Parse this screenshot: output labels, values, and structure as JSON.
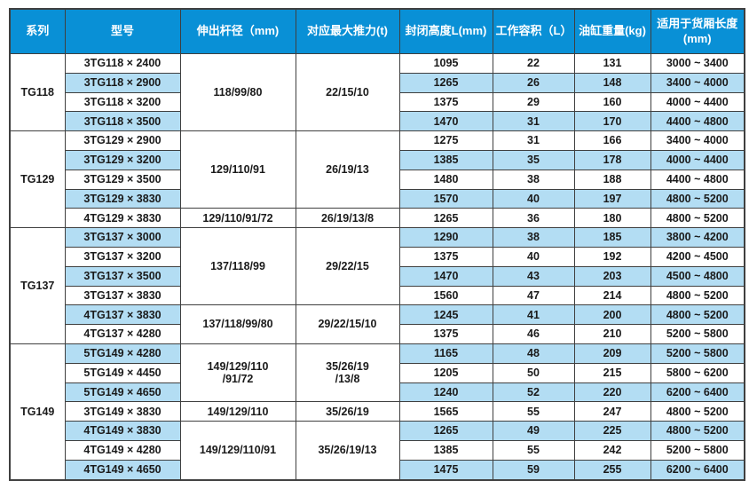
{
  "colors": {
    "header_bg": "#0990d6",
    "header_text": "#ffffff",
    "row_bg": "#ffffff",
    "row_alt_bg": "#b3ddf3",
    "border": "#3f3f3f",
    "body_text": "#1a1a1a"
  },
  "table": {
    "headers": [
      "系列",
      "型号",
      "伸出杆径（mm)",
      "对应最大推力(t)",
      "封闭高度L(mm)",
      "工作容积（L）",
      "油缸重量(kg)",
      "适用于货厢长度(mm)"
    ],
    "rows": [
      {
        "series": {
          "text": "TG118",
          "span": 4
        },
        "model": "3TG118 × 2400",
        "rod": {
          "text": "118/99/80",
          "span": 4
        },
        "thrust": {
          "text": "22/15/10",
          "span": 4
        },
        "height": "1095",
        "volume": "22",
        "weight": "131",
        "range": "3000 ~ 3400"
      },
      {
        "model": "3TG118 × 2900",
        "height": "1265",
        "volume": "26",
        "weight": "148",
        "range": "3400 ~ 4000"
      },
      {
        "model": "3TG118 × 3200",
        "height": "1375",
        "volume": "29",
        "weight": "160",
        "range": "4000 ~ 4400"
      },
      {
        "model": "3TG118 × 3500",
        "height": "1470",
        "volume": "31",
        "weight": "170",
        "range": "4400 ~ 4800"
      },
      {
        "series": {
          "text": "TG129",
          "span": 5
        },
        "model": "3TG129 × 2900",
        "rod": {
          "text": "129/110/91",
          "span": 4
        },
        "thrust": {
          "text": "26/19/13",
          "span": 4
        },
        "height": "1275",
        "volume": "31",
        "weight": "166",
        "range": "3400 ~ 4000"
      },
      {
        "model": "3TG129 × 3200",
        "height": "1385",
        "volume": "35",
        "weight": "178",
        "range": "4000 ~ 4400"
      },
      {
        "model": "3TG129 × 3500",
        "height": "1480",
        "volume": "38",
        "weight": "188",
        "range": "4400 ~ 4800"
      },
      {
        "model": "3TG129 × 3830",
        "height": "1570",
        "volume": "40",
        "weight": "197",
        "range": "4800 ~ 5200"
      },
      {
        "model": "4TG129 × 3830",
        "rod": {
          "text": "129/110/91/72",
          "span": 1
        },
        "thrust": {
          "text": "26/19/13/8",
          "span": 1
        },
        "height": "1265",
        "volume": "36",
        "weight": "180",
        "range": "4800 ~ 5200"
      },
      {
        "series": {
          "text": "TG137",
          "span": 6
        },
        "model": "3TG137 × 3000",
        "rod": {
          "text": "137/118/99",
          "span": 4
        },
        "thrust": {
          "text": "29/22/15",
          "span": 4
        },
        "height": "1290",
        "volume": "38",
        "weight": "185",
        "range": "3800 ~ 4200"
      },
      {
        "model": "3TG137 × 3200",
        "height": "1375",
        "volume": "40",
        "weight": "192",
        "range": "4200 ~ 4500"
      },
      {
        "model": "3TG137 × 3500",
        "height": "1470",
        "volume": "43",
        "weight": "203",
        "range": "4500 ~ 4800"
      },
      {
        "model": "3TG137 × 3830",
        "height": "1560",
        "volume": "47",
        "weight": "214",
        "range": "4800 ~ 5200"
      },
      {
        "model": "4TG137 × 3830",
        "rod": {
          "text": "137/118/99/80",
          "span": 2
        },
        "thrust": {
          "text": "29/22/15/10",
          "span": 2
        },
        "height": "1245",
        "volume": "41",
        "weight": "200",
        "range": "4800 ~ 5200"
      },
      {
        "model": "4TG137 × 4280",
        "height": "1375",
        "volume": "46",
        "weight": "210",
        "range": "5200 ~ 5800"
      },
      {
        "series": {
          "text": "TG149",
          "span": 7
        },
        "model": "5TG149 × 4280",
        "rod": {
          "text": "149/129/110\n/91/72",
          "span": 3
        },
        "thrust": {
          "text": "35/26/19\n/13/8",
          "span": 3
        },
        "height": "1165",
        "volume": "48",
        "weight": "209",
        "range": "5200 ~ 5800"
      },
      {
        "model": "5TG149 × 4450",
        "height": "1205",
        "volume": "50",
        "weight": "215",
        "range": "5800 ~ 6200"
      },
      {
        "model": "5TG149 × 4650",
        "height": "1240",
        "volume": "52",
        "weight": "220",
        "range": "6200 ~ 6400"
      },
      {
        "model": "3TG149 × 3830",
        "rod": {
          "text": "149/129/110",
          "span": 1
        },
        "thrust": {
          "text": "35/26/19",
          "span": 1
        },
        "height": "1565",
        "volume": "55",
        "weight": "247",
        "range": "4800 ~ 5200"
      },
      {
        "model": "4TG149 × 3830",
        "rod": {
          "text": "149/129/110/91",
          "span": 3
        },
        "thrust": {
          "text": "35/26/19/13",
          "span": 3
        },
        "height": "1265",
        "volume": "49",
        "weight": "225",
        "range": "4800 ~ 5200"
      },
      {
        "model": "4TG149 × 4280",
        "height": "1385",
        "volume": "55",
        "weight": "242",
        "range": "5200 ~ 5800"
      },
      {
        "model": "4TG149 × 4650",
        "height": "1475",
        "volume": "59",
        "weight": "255",
        "range": "6200 ~ 6400"
      }
    ]
  },
  "chart_data": {
    "type": "table",
    "columns": [
      "系列",
      "型号",
      "伸出杆径（mm)",
      "对应最大推力(t)",
      "封闭高度L(mm)",
      "工作容积（L）",
      "油缸重量(kg)",
      "适用于货厢长度(mm)"
    ],
    "rows": [
      [
        "TG118",
        "3TG118 × 2400",
        "118/99/80",
        "22/15/10",
        1095,
        22,
        131,
        "3000 ~ 3400"
      ],
      [
        "TG118",
        "3TG118 × 2900",
        "118/99/80",
        "22/15/10",
        1265,
        26,
        148,
        "3400 ~ 4000"
      ],
      [
        "TG118",
        "3TG118 × 3200",
        "118/99/80",
        "22/15/10",
        1375,
        29,
        160,
        "4000 ~ 4400"
      ],
      [
        "TG118",
        "3TG118 × 3500",
        "118/99/80",
        "22/15/10",
        1470,
        31,
        170,
        "4400 ~ 4800"
      ],
      [
        "TG129",
        "3TG129 × 2900",
        "129/110/91",
        "26/19/13",
        1275,
        31,
        166,
        "3400 ~ 4000"
      ],
      [
        "TG129",
        "3TG129 × 3200",
        "129/110/91",
        "26/19/13",
        1385,
        35,
        178,
        "4000 ~ 4400"
      ],
      [
        "TG129",
        "3TG129 × 3500",
        "129/110/91",
        "26/19/13",
        1480,
        38,
        188,
        "4400 ~ 4800"
      ],
      [
        "TG129",
        "3TG129 × 3830",
        "129/110/91",
        "26/19/13",
        1570,
        40,
        197,
        "4800 ~ 5200"
      ],
      [
        "TG129",
        "4TG129 × 3830",
        "129/110/91/72",
        "26/19/13/8",
        1265,
        36,
        180,
        "4800 ~ 5200"
      ],
      [
        "TG137",
        "3TG137 × 3000",
        "137/118/99",
        "29/22/15",
        1290,
        38,
        185,
        "3800 ~ 4200"
      ],
      [
        "TG137",
        "3TG137 × 3200",
        "137/118/99",
        "29/22/15",
        1375,
        40,
        192,
        "4200 ~ 4500"
      ],
      [
        "TG137",
        "3TG137 × 3500",
        "137/118/99",
        "29/22/15",
        1470,
        43,
        203,
        "4500 ~ 4800"
      ],
      [
        "TG137",
        "3TG137 × 3830",
        "137/118/99",
        "29/22/15",
        1560,
        47,
        214,
        "4800 ~ 5200"
      ],
      [
        "TG137",
        "4TG137 × 3830",
        "137/118/99/80",
        "29/22/15/10",
        1245,
        41,
        200,
        "4800 ~ 5200"
      ],
      [
        "TG137",
        "4TG137 × 4280",
        "137/118/99/80",
        "29/22/15/10",
        1375,
        46,
        210,
        "5200 ~ 5800"
      ],
      [
        "TG149",
        "5TG149 × 4280",
        "149/129/110/91/72",
        "35/26/19/13/8",
        1165,
        48,
        209,
        "5200 ~ 5800"
      ],
      [
        "TG149",
        "5TG149 × 4450",
        "149/129/110/91/72",
        "35/26/19/13/8",
        1205,
        50,
        215,
        "5800 ~ 6200"
      ],
      [
        "TG149",
        "5TG149 × 4650",
        "149/129/110/91/72",
        "35/26/19/13/8",
        1240,
        52,
        220,
        "6200 ~ 6400"
      ],
      [
        "TG149",
        "3TG149 × 3830",
        "149/129/110",
        "35/26/19",
        1565,
        55,
        247,
        "4800 ~ 5200"
      ],
      [
        "TG149",
        "4TG149 × 3830",
        "149/129/110/91",
        "35/26/19/13",
        1265,
        49,
        225,
        "4800 ~ 5200"
      ],
      [
        "TG149",
        "4TG149 × 4280",
        "149/129/110/91",
        "35/26/19/13",
        1385,
        55,
        242,
        "5200 ~ 5800"
      ],
      [
        "TG149",
        "4TG149 × 4650",
        "149/129/110/91",
        "35/26/19/13",
        1475,
        59,
        255,
        "6200 ~ 6400"
      ]
    ]
  }
}
